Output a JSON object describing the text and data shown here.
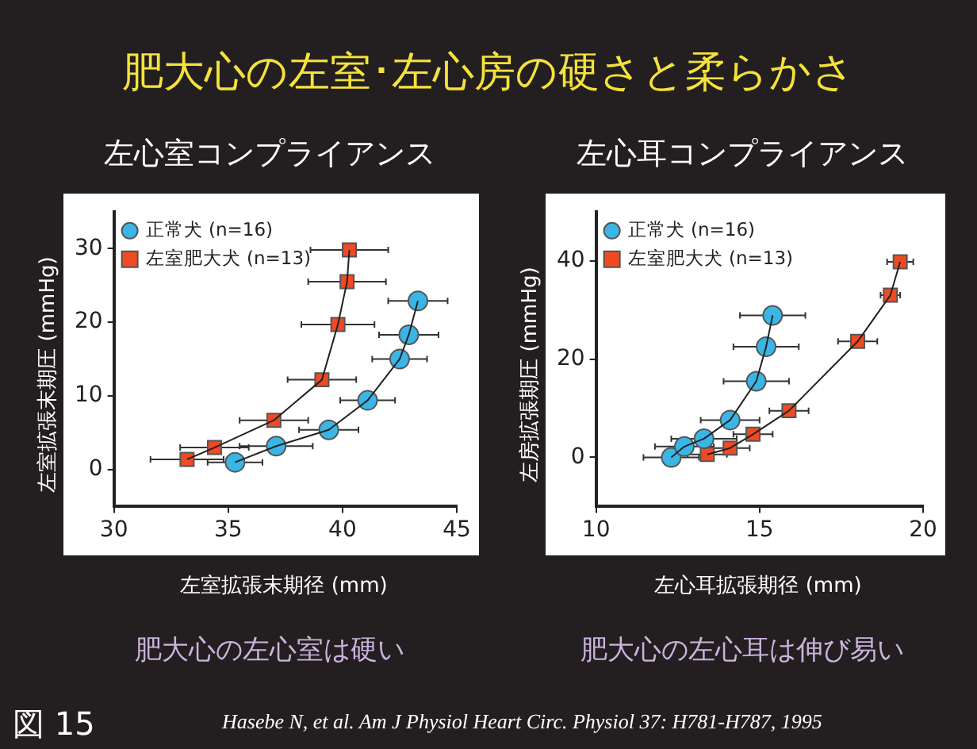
{
  "chart_data": [
    {
      "type": "scatter",
      "title": "左心室コンプライアンス",
      "xlabel": "左室拡張末期径 (mm)",
      "ylabel": "左室拡張末期圧 (mmHg)",
      "xlim": [
        30,
        45
      ],
      "xticks": [
        30,
        35,
        40,
        45
      ],
      "ylim": [
        -5,
        35
      ],
      "yticks": [
        0,
        10,
        20,
        30
      ],
      "legend": "top left",
      "annotations": [
        "肥大心の左室･左心房の硬さと柔らかさ",
        "肥大心の左心室は硬い",
        "図 15",
        "Hasebe N, et al.  Am J Physiol Heart Circ. Physiol  37: H781-H787, 1995"
      ],
      "series": [
        {
          "type": "line",
          "color": "#222222",
          "marker": "none",
          "line_style": "solid",
          "x": [
            35.3,
            37.1,
            39.4,
            41.1,
            42.5,
            42.9,
            43.3
          ],
          "values": [
            1.0,
            3.2,
            5.4,
            9.4,
            15.0,
            18.3,
            22.9
          ]
        },
        {
          "type": "line",
          "color": "#222222",
          "marker": "none",
          "line_style": "solid",
          "x": [
            33.2,
            34.4,
            37.0,
            39.1,
            39.8,
            40.2,
            40.3
          ],
          "values": [
            1.4,
            3.0,
            6.7,
            12.2,
            19.7,
            25.5,
            29.8
          ]
        },
        {
          "name": "正常犬 (n=16)",
          "color": "#3ab6e6",
          "marker": "circle",
          "x": [
            35.3,
            37.1,
            39.4,
            41.1,
            42.5,
            42.9,
            43.3
          ],
          "values": [
            1.0,
            3.2,
            5.4,
            9.4,
            15.0,
            18.3,
            22.9
          ],
          "xerrors": [
            1.2,
            1.6,
            1.3,
            1.2,
            1.2,
            1.3,
            1.3
          ]
        },
        {
          "name": "左室肥大犬 (n=13)",
          "color": "#f04a23",
          "marker": "square",
          "x": [
            33.2,
            34.4,
            37.0,
            39.1,
            39.8,
            40.2,
            40.3
          ],
          "values": [
            1.4,
            3.0,
            6.7,
            12.2,
            19.7,
            25.5,
            29.8
          ],
          "xerrors": [
            1.6,
            1.5,
            1.5,
            1.5,
            1.6,
            1.7,
            1.7
          ]
        }
      ]
    },
    {
      "type": "scatter",
      "title": "左心耳コンプライアンス",
      "xlabel": "左心耳拡張期径 (mm)",
      "ylabel": "左房拡張期圧 (mmHg)",
      "xlim": [
        10,
        20
      ],
      "xticks": [
        10,
        15,
        20
      ],
      "ylim": [
        -10,
        50
      ],
      "yticks": [
        0,
        20,
        40
      ],
      "legend": "top left",
      "annotations": [
        "肥大心の左心耳は伸び易い"
      ],
      "series": [
        {
          "type": "line",
          "color": "#222222",
          "marker": "none",
          "line_style": "solid",
          "x": [
            12.3,
            12.7,
            13.3,
            14.1,
            14.9,
            15.2,
            15.4
          ],
          "values": [
            0,
            2.2,
            3.8,
            7.6,
            15.5,
            22.5,
            28.9
          ]
        },
        {
          "type": "line",
          "color": "#222222",
          "marker": "none",
          "line_style": "solid",
          "x": [
            13.4,
            14.1,
            14.8,
            15.9,
            18.0,
            19.0,
            19.3
          ],
          "values": [
            0.6,
            1.9,
            4.7,
            9.5,
            23.6,
            33.0,
            39.8
          ]
        },
        {
          "name": "正常犬 (n=16)",
          "color": "#3ab6e6",
          "marker": "circle",
          "x": [
            12.3,
            12.7,
            13.3,
            14.1,
            14.9,
            15.2,
            15.4
          ],
          "values": [
            0,
            2.2,
            3.8,
            7.6,
            15.5,
            22.5,
            28.9
          ],
          "xerrors": [
            0.85,
            0.9,
            1.0,
            0.9,
            1.0,
            1.0,
            1.0
          ]
        },
        {
          "name": "左室肥大犬 (n=13)",
          "color": "#f04a23",
          "marker": "square",
          "x": [
            13.4,
            14.1,
            14.8,
            15.9,
            18.0,
            19.0,
            19.3
          ],
          "values": [
            0.6,
            1.9,
            4.7,
            9.5,
            23.6,
            33.0,
            39.8
          ],
          "xerrors": [
            0.6,
            0.6,
            0.6,
            0.6,
            0.6,
            0.3,
            0.4
          ]
        }
      ]
    }
  ]
}
